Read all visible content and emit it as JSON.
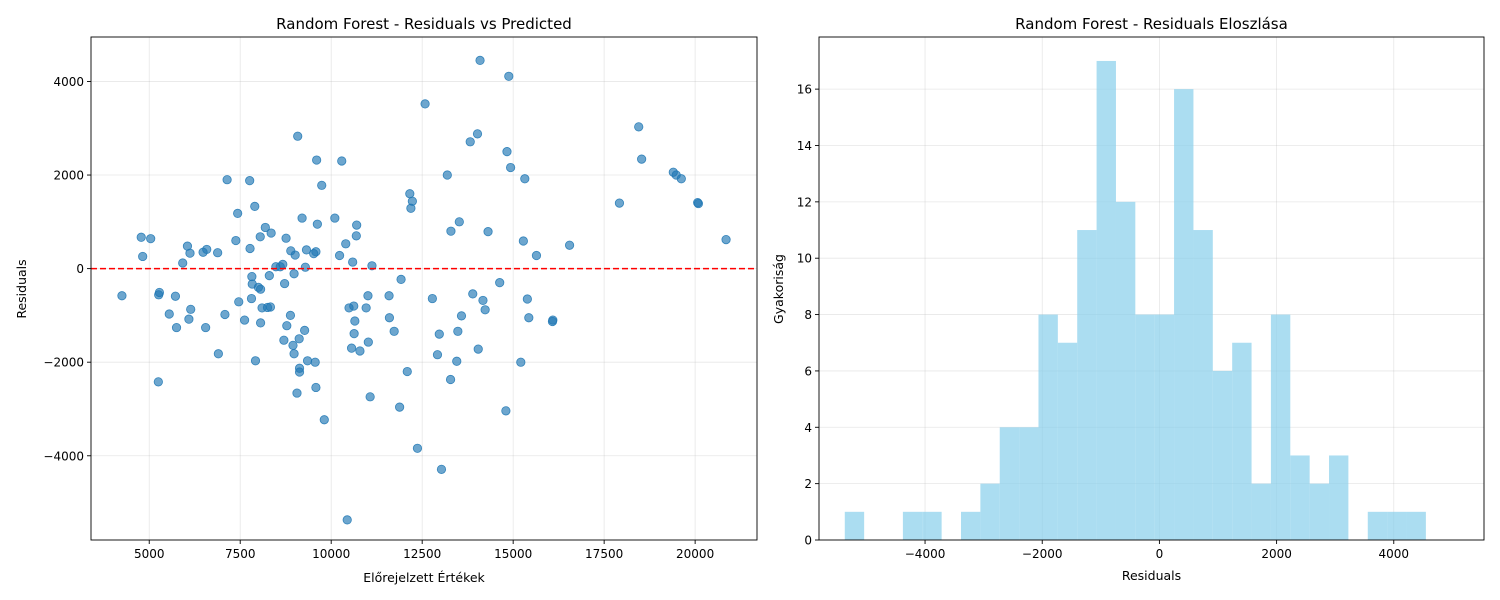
{
  "chart_data": [
    {
      "type": "scatter",
      "title": "Random Forest - Residuals vs Predicted",
      "xlabel": "Előrejelzett Értékek",
      "ylabel": "Residuals",
      "xlim": [
        3400,
        21700
      ],
      "ylim": [
        -5800,
        4950
      ],
      "xticks": [
        5000,
        7500,
        10000,
        12500,
        15000,
        17500,
        20000
      ],
      "xtick_labels": [
        "5000",
        "7500",
        "10000",
        "12500",
        "15000",
        "17500",
        "20000"
      ],
      "yticks": [
        -4000,
        -2000,
        0,
        2000,
        4000
      ],
      "ytick_labels": [
        "−4000",
        "−2000",
        "0",
        "2000",
        "4000"
      ],
      "grid": true,
      "reference_line": {
        "y": 0,
        "color": "#ff0000",
        "style": "dashed"
      },
      "marker_color": "#1f77b4",
      "points": [
        [
          4250,
          -580
        ],
        [
          4780,
          670
        ],
        [
          4820,
          260
        ],
        [
          5040,
          640
        ],
        [
          5250,
          -2420
        ],
        [
          5260,
          -560
        ],
        [
          5280,
          -510
        ],
        [
          5550,
          -970
        ],
        [
          5720,
          -590
        ],
        [
          5750,
          -1260
        ],
        [
          5920,
          120
        ],
        [
          6050,
          480
        ],
        [
          6090,
          -1080
        ],
        [
          6120,
          330
        ],
        [
          6140,
          -870
        ],
        [
          6480,
          350
        ],
        [
          6550,
          -1260
        ],
        [
          6580,
          410
        ],
        [
          6880,
          340
        ],
        [
          6900,
          -1820
        ],
        [
          7080,
          -980
        ],
        [
          7140,
          1900
        ],
        [
          7380,
          600
        ],
        [
          7430,
          1180
        ],
        [
          7460,
          -710
        ],
        [
          7620,
          -1100
        ],
        [
          7760,
          1880
        ],
        [
          7770,
          430
        ],
        [
          7810,
          -640
        ],
        [
          7820,
          -170
        ],
        [
          7830,
          -330
        ],
        [
          7900,
          1330
        ],
        [
          7920,
          -1970
        ],
        [
          8000,
          -400
        ],
        [
          8050,
          680
        ],
        [
          8060,
          -440
        ],
        [
          8060,
          -1160
        ],
        [
          8100,
          -840
        ],
        [
          8190,
          880
        ],
        [
          8250,
          -830
        ],
        [
          8300,
          -150
        ],
        [
          8330,
          -820
        ],
        [
          8350,
          760
        ],
        [
          8480,
          40
        ],
        [
          8600,
          40
        ],
        [
          8670,
          90
        ],
        [
          8700,
          -1530
        ],
        [
          8720,
          -320
        ],
        [
          8760,
          650
        ],
        [
          8780,
          -1220
        ],
        [
          8880,
          -1000
        ],
        [
          8890,
          380
        ],
        [
          8950,
          -1640
        ],
        [
          8980,
          -110
        ],
        [
          8980,
          -1820
        ],
        [
          9010,
          290
        ],
        [
          9060,
          -2660
        ],
        [
          9080,
          2830
        ],
        [
          9120,
          -1500
        ],
        [
          9130,
          -2210
        ],
        [
          9130,
          -2130
        ],
        [
          9200,
          1080
        ],
        [
          9270,
          -1320
        ],
        [
          9290,
          30
        ],
        [
          9320,
          400
        ],
        [
          9350,
          -1970
        ],
        [
          9520,
          320
        ],
        [
          9560,
          -2000
        ],
        [
          9580,
          -2540
        ],
        [
          9580,
          360
        ],
        [
          9600,
          2320
        ],
        [
          9620,
          950
        ],
        [
          9740,
          1780
        ],
        [
          9810,
          -3230
        ],
        [
          10100,
          1080
        ],
        [
          10230,
          280
        ],
        [
          10290,
          2300
        ],
        [
          10400,
          530
        ],
        [
          10440,
          -5370
        ],
        [
          10490,
          -840
        ],
        [
          10560,
          -1700
        ],
        [
          10590,
          140
        ],
        [
          10620,
          -800
        ],
        [
          10630,
          -1390
        ],
        [
          10650,
          -1120
        ],
        [
          10690,
          700
        ],
        [
          10700,
          930
        ],
        [
          10790,
          -1760
        ],
        [
          10960,
          -840
        ],
        [
          11010,
          -580
        ],
        [
          11020,
          -1570
        ],
        [
          11070,
          -2740
        ],
        [
          11120,
          60
        ],
        [
          11590,
          -580
        ],
        [
          11600,
          -1050
        ],
        [
          11730,
          -1340
        ],
        [
          11880,
          -2960
        ],
        [
          11920,
          -230
        ],
        [
          12090,
          -2200
        ],
        [
          12160,
          1600
        ],
        [
          12190,
          1290
        ],
        [
          12230,
          1440
        ],
        [
          12370,
          -3840
        ],
        [
          12580,
          3520
        ],
        [
          12780,
          -640
        ],
        [
          12920,
          -1840
        ],
        [
          12970,
          -1400
        ],
        [
          13030,
          -4290
        ],
        [
          13190,
          2000
        ],
        [
          13280,
          -2370
        ],
        [
          13290,
          800
        ],
        [
          13450,
          -1980
        ],
        [
          13480,
          -1340
        ],
        [
          13520,
          1000
        ],
        [
          13580,
          -1010
        ],
        [
          13890,
          -540
        ],
        [
          13820,
          2710
        ],
        [
          14020,
          2880
        ],
        [
          14040,
          -1720
        ],
        [
          14090,
          4450
        ],
        [
          14170,
          -680
        ],
        [
          14230,
          -880
        ],
        [
          14310,
          790
        ],
        [
          14630,
          -300
        ],
        [
          14800,
          -3040
        ],
        [
          14830,
          2500
        ],
        [
          14880,
          4110
        ],
        [
          14930,
          2160
        ],
        [
          15210,
          -2000
        ],
        [
          15280,
          590
        ],
        [
          15320,
          1920
        ],
        [
          15390,
          -650
        ],
        [
          15430,
          -1050
        ],
        [
          15640,
          280
        ],
        [
          16080,
          -1130
        ],
        [
          16090,
          -1100
        ],
        [
          16550,
          500
        ],
        [
          17920,
          1400
        ],
        [
          18450,
          3030
        ],
        [
          18530,
          2340
        ],
        [
          19400,
          2060
        ],
        [
          19480,
          2000
        ],
        [
          19620,
          1920
        ],
        [
          20070,
          1410
        ],
        [
          20090,
          1390
        ],
        [
          20850,
          620
        ]
      ]
    },
    {
      "type": "bar",
      "title": "Random Forest - Residuals Eloszlása",
      "xlabel": "Residuals",
      "ylabel": "Gyakoriság",
      "xlim": [
        -5810,
        5540
      ],
      "ylim": [
        0,
        17.85
      ],
      "xticks": [
        -4000,
        -2000,
        0,
        2000,
        4000
      ],
      "xtick_labels": [
        "−4000",
        "−2000",
        "0",
        "2000",
        "4000"
      ],
      "yticks": [
        0,
        2,
        4,
        6,
        8,
        10,
        12,
        14,
        16
      ],
      "ytick_labels": [
        "0",
        "2",
        "4",
        "6",
        "8",
        "10",
        "12",
        "14",
        "16"
      ],
      "grid": true,
      "bar_color": "#87ceeb",
      "bin_edges": [
        -5370,
        -5039.4,
        -4708.8,
        -4378.2,
        -4047.6,
        -3717,
        -3386.4,
        -3055.8,
        -2725.2,
        -2394.6,
        -2064,
        -1733.4,
        -1402.8,
        -1072.2,
        -741.6,
        -411,
        -80.4,
        250.2,
        580.8,
        911.4,
        1242,
        1572.6,
        1903.2,
        2233.8,
        2564.4,
        2895,
        3225.6,
        3556.2,
        3886.8,
        4217.4,
        4548
      ],
      "counts": [
        1,
        0,
        0,
        1,
        1,
        0,
        1,
        2,
        4,
        4,
        8,
        7,
        11,
        17,
        12,
        8,
        8,
        16,
        11,
        6,
        7,
        2,
        8,
        3,
        2,
        3,
        0,
        1,
        1,
        1
      ]
    }
  ]
}
